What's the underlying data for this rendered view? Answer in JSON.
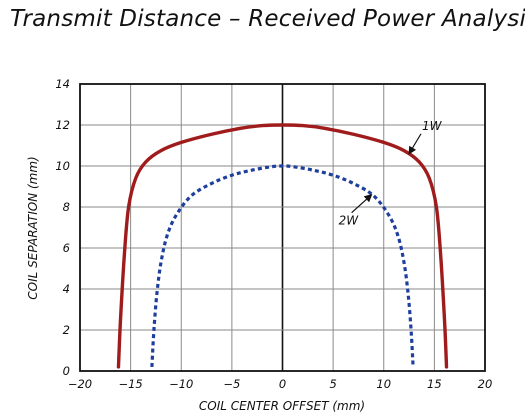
{
  "chart_data": {
    "type": "line",
    "title": "Transmit Distance – Received Power Analysis",
    "xlabel": "COIL CENTER OFFSET (mm)",
    "ylabel": "COIL SEPARATION (mm)",
    "xlim": [
      -20,
      20
    ],
    "ylim": [
      0,
      14
    ],
    "xticks": [
      -20,
      -15,
      -10,
      -5,
      0,
      5,
      10,
      15,
      20
    ],
    "xtick_labels": [
      "−20",
      "−15",
      "−10",
      "−5",
      "0",
      "5",
      "10",
      "15",
      "20"
    ],
    "yticks": [
      0,
      2,
      4,
      6,
      8,
      10,
      12,
      14
    ],
    "grid": true,
    "legend": "none",
    "series": [
      {
        "name": "1W",
        "color": "#a01c1c",
        "style": "solid",
        "x": [
          -16.2,
          -16.0,
          -15.6,
          -15.2,
          -14.5,
          -13.5,
          -12.0,
          -10.0,
          -7.0,
          -4.0,
          -2.0,
          0,
          2.0,
          4.0,
          7.0,
          10.0,
          12.0,
          13.5,
          14.5,
          15.2,
          15.6,
          16.0,
          16.2
        ],
        "y": [
          0.2,
          2.5,
          5.8,
          8.0,
          9.4,
          10.2,
          10.75,
          11.15,
          11.55,
          11.85,
          11.97,
          12.0,
          11.97,
          11.85,
          11.55,
          11.15,
          10.75,
          10.2,
          9.4,
          8.0,
          5.8,
          2.5,
          0.2
        ]
      },
      {
        "name": "2W",
        "color": "#1f3f9e",
        "style": "dashed",
        "x": [
          -12.9,
          -12.7,
          -12.4,
          -12.0,
          -11.4,
          -10.5,
          -9.0,
          -7.0,
          -5.0,
          -3.0,
          -1.0,
          0,
          1.0,
          3.0,
          5.0,
          7.0,
          9.0,
          10.5,
          11.4,
          12.0,
          12.4,
          12.7,
          12.9
        ],
        "y": [
          0.2,
          2.0,
          3.8,
          5.3,
          6.6,
          7.6,
          8.55,
          9.15,
          9.55,
          9.8,
          9.97,
          10.0,
          9.97,
          9.8,
          9.55,
          9.15,
          8.55,
          7.6,
          6.6,
          5.3,
          3.8,
          2.0,
          0.2
        ]
      }
    ],
    "annotations": [
      {
        "text": "1W",
        "target": [
          12.3,
          10.5
        ]
      },
      {
        "text": "2W",
        "target": [
          9.0,
          8.7
        ]
      }
    ]
  }
}
